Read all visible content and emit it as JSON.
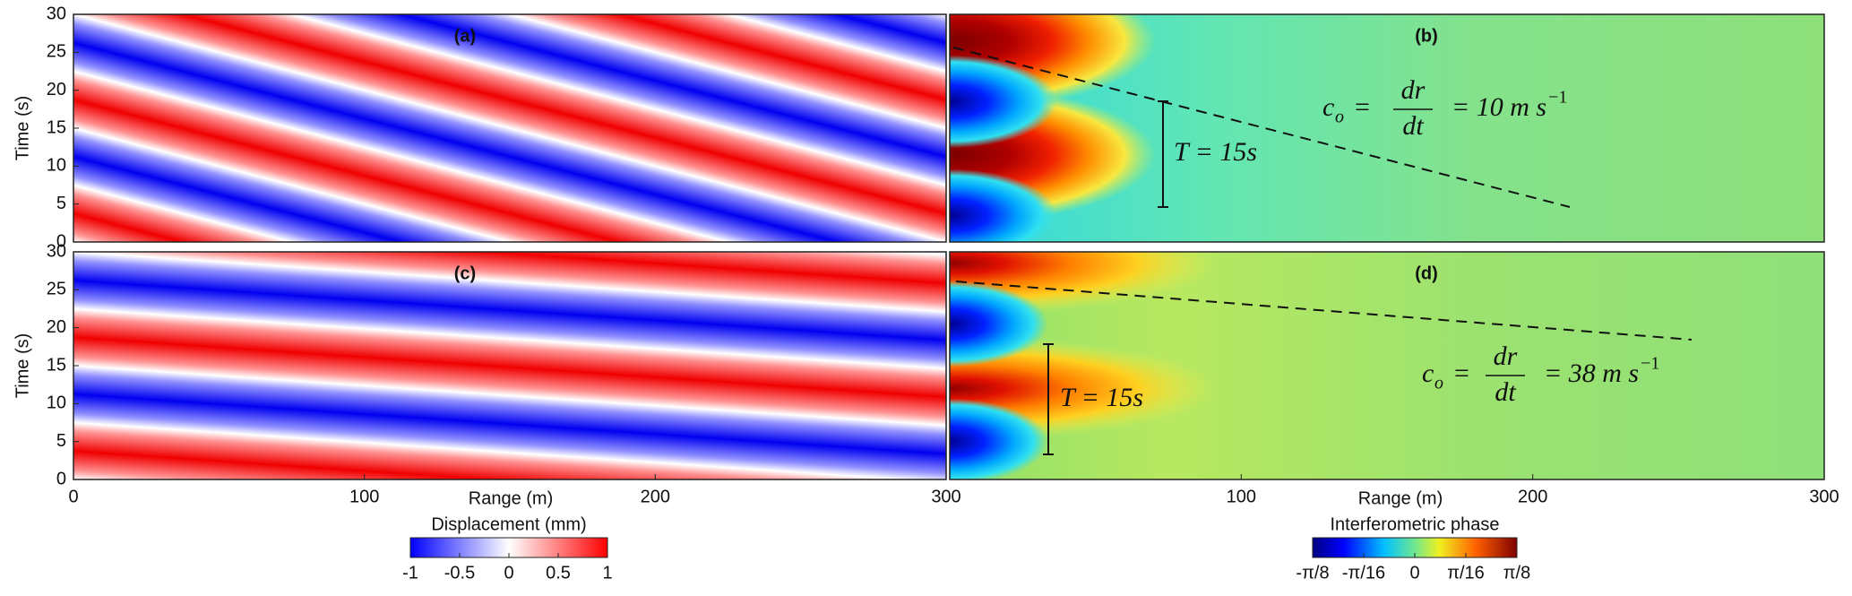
{
  "chart_data": [
    {
      "type": "heatmap",
      "panel_label": "(a)",
      "ylabel": "Time (s)",
      "xlim": [
        0,
        300
      ],
      "ylim": [
        0,
        30
      ],
      "yticks": [
        0,
        5,
        10,
        15,
        20,
        25,
        30
      ]
    },
    {
      "type": "heatmap",
      "panel_label": "(b)",
      "xlim": [
        0,
        300
      ],
      "ylim": [
        0,
        30
      ],
      "annotations": [
        {
          "text": "T = 15s"
        }
      ],
      "formula": {
        "lhs": "c",
        "sub": "o",
        "eq": "=",
        "num": "dr",
        "den": "dt",
        "rhs": "= 10 m s",
        "sup": "−1"
      }
    },
    {
      "type": "heatmap",
      "panel_label": "(c)",
      "ylabel": "Time (s)",
      "xlabel": "Range (m)",
      "xlim": [
        0,
        300
      ],
      "ylim": [
        0,
        30
      ],
      "yticks": [
        0,
        5,
        10,
        15,
        20,
        25,
        30
      ],
      "xticks": [
        0,
        100,
        200,
        300
      ],
      "colorbar": {
        "label": "Displacement (mm)",
        "clim": [
          -1,
          1
        ],
        "ticks": [
          -1,
          -0.5,
          0,
          0.5,
          1
        ]
      }
    },
    {
      "type": "heatmap",
      "panel_label": "(d)",
      "xlabel": "Range (m)",
      "xlim": [
        0,
        300
      ],
      "ylim": [
        0,
        30
      ],
      "xticks": [
        100,
        200,
        300
      ],
      "annotations": [
        {
          "text": "T = 15s"
        }
      ],
      "formula": {
        "lhs": "c",
        "sub": "o",
        "eq": "=",
        "num": "dr",
        "den": "dt",
        "rhs": "= 38 m s",
        "sup": "−1"
      },
      "colorbar": {
        "label": "Interferometric phase",
        "clim": [
          -0.3927,
          0.3927
        ],
        "ticks": [
          {
            "value": -0.3927,
            "label": "-π/8"
          },
          {
            "value": -0.19635,
            "label": "-π/16"
          },
          0,
          {
            "value": 0.19635,
            "label": "π/16"
          },
          {
            "value": 0.3927,
            "label": "π/8"
          }
        ]
      }
    }
  ]
}
